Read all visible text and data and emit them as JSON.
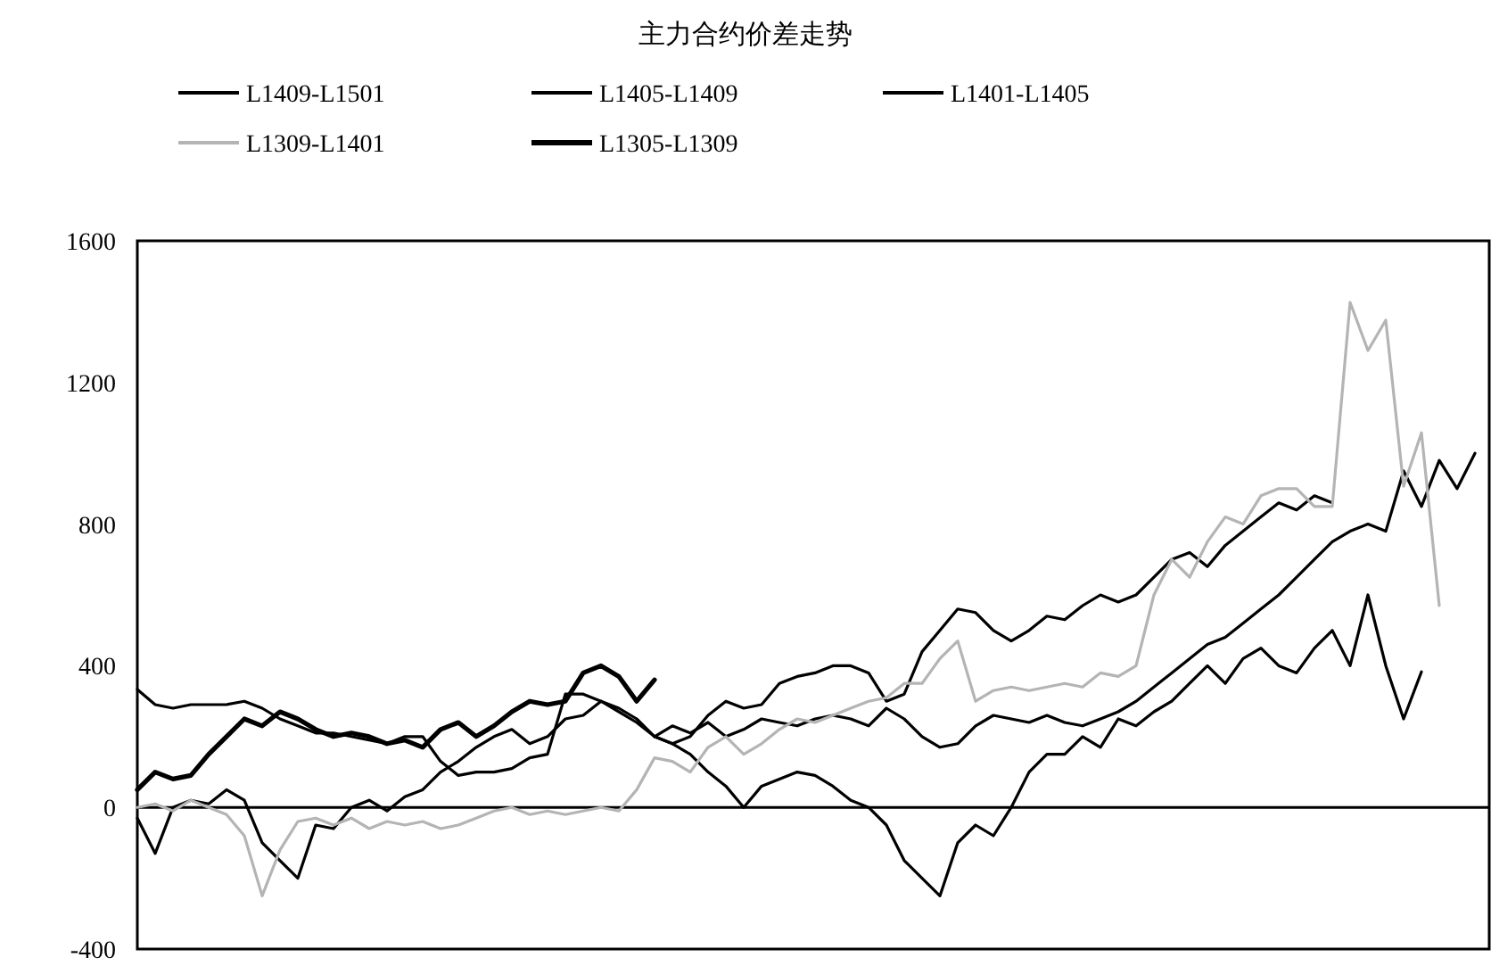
{
  "chart_data": {
    "type": "line",
    "title": "主力合约价差走势",
    "legend": "top",
    "ylim": [
      -400,
      1600
    ],
    "yticks": [
      -400,
      0,
      400,
      800,
      1200,
      1600
    ],
    "categories": [
      null,
      null,
      null,
      null,
      null,
      null,
      null,
      null,
      null,
      null,
      null,
      null,
      null,
      null,
      null,
      null,
      null,
      null,
      null,
      null,
      null,
      null,
      null,
      null,
      null,
      null,
      null,
      null,
      null,
      null,
      null,
      null,
      null,
      null,
      null,
      null,
      null,
      null,
      null,
      null,
      null,
      null,
      null,
      null,
      null,
      null,
      null,
      null,
      null,
      null,
      null,
      null,
      null,
      null,
      null,
      null,
      null,
      null,
      null,
      null,
      null,
      null,
      null,
      null,
      null,
      null,
      null,
      null,
      null,
      null,
      null,
      null,
      null,
      null,
      null,
      null
    ],
    "series": [
      {
        "name": "L1409-L1501",
        "color": "#000000",
        "values": [
          null,
          null,
          null,
          null,
          null,
          null,
          null,
          null,
          null,
          null,
          null,
          null,
          null,
          null,
          null,
          null,
          null,
          null,
          null,
          null,
          null,
          null,
          null,
          null,
          null,
          null,
          null,
          null,
          null,
          200,
          230,
          210,
          240,
          200,
          220,
          250,
          240,
          230,
          250,
          260,
          250,
          230,
          280,
          250,
          200,
          170,
          180,
          230,
          260,
          250,
          240,
          260,
          240,
          230,
          250,
          270,
          300,
          340,
          380,
          420,
          460,
          480,
          520,
          560,
          600,
          650,
          700,
          750,
          780,
          800,
          780,
          950,
          850,
          980,
          900,
          1000
        ]
      },
      {
        "name": "L1405-L1409",
        "color": "#000000",
        "values": [
          -30,
          -130,
          0,
          20,
          10,
          50,
          20,
          -100,
          -150,
          -200,
          -50,
          -60,
          0,
          20,
          -10,
          30,
          50,
          100,
          130,
          170,
          200,
          220,
          180,
          200,
          250,
          260,
          300,
          280,
          250,
          200,
          180,
          150,
          100,
          60,
          0,
          60,
          80,
          100,
          90,
          60,
          20,
          0,
          -50,
          -150,
          -200,
          -250,
          -100,
          -50,
          -80,
          0,
          100,
          150,
          150,
          200,
          170,
          250,
          230,
          270,
          300,
          350,
          400,
          350,
          420,
          450,
          400,
          380,
          450,
          500,
          400,
          600,
          400,
          250,
          383,
          null,
          null,
          null
        ]
      },
      {
        "name": "L1401-L1405",
        "color": "#000000",
        "values": [
          333,
          290,
          280,
          290,
          290,
          290,
          300,
          280,
          250,
          230,
          210,
          210,
          200,
          190,
          180,
          200,
          200,
          130,
          90,
          100,
          100,
          110,
          140,
          150,
          320,
          320,
          300,
          270,
          240,
          200,
          180,
          200,
          260,
          300,
          280,
          290,
          350,
          370,
          380,
          400,
          400,
          380,
          300,
          320,
          440,
          500,
          560,
          550,
          500,
          470,
          500,
          540,
          530,
          570,
          600,
          580,
          600,
          650,
          700,
          720,
          680,
          740,
          780,
          820,
          860,
          840,
          880,
          860,
          null,
          null,
          null,
          null,
          null,
          null,
          null,
          null
        ]
      },
      {
        "name": "L1309-L1401",
        "color": "#b4b4b4",
        "values": [
          0,
          10,
          -10,
          20,
          0,
          -20,
          -80,
          -250,
          -120,
          -40,
          -30,
          -50,
          -30,
          -60,
          -40,
          -50,
          -40,
          -60,
          -50,
          -30,
          -10,
          0,
          -20,
          -10,
          -20,
          -10,
          0,
          -10,
          50,
          140,
          130,
          100,
          170,
          200,
          150,
          180,
          220,
          250,
          240,
          260,
          280,
          300,
          310,
          350,
          350,
          420,
          470,
          300,
          330,
          340,
          330,
          340,
          350,
          340,
          380,
          370,
          400,
          600,
          700,
          650,
          750,
          820,
          800,
          880,
          900,
          900,
          850,
          850,
          1426,
          1290,
          1376,
          907,
          1058,
          570,
          null,
          null
        ]
      },
      {
        "name": "L1305-L1309",
        "color": "#000000",
        "values": [
          50,
          100,
          80,
          90,
          150,
          200,
          250,
          230,
          270,
          250,
          220,
          200,
          210,
          200,
          180,
          190,
          170,
          220,
          240,
          200,
          230,
          270,
          300,
          290,
          300,
          380,
          400,
          370,
          300,
          360,
          null,
          null,
          null,
          null,
          null,
          null,
          null,
          null,
          null,
          null,
          null,
          null,
          null,
          null,
          null,
          null,
          null,
          null,
          null,
          null,
          null,
          null,
          null,
          null,
          null,
          null,
          null,
          null,
          null,
          null,
          null,
          null,
          null,
          null,
          null,
          null,
          null,
          null,
          null,
          null,
          null,
          null,
          null,
          null,
          null,
          null
        ]
      }
    ]
  }
}
